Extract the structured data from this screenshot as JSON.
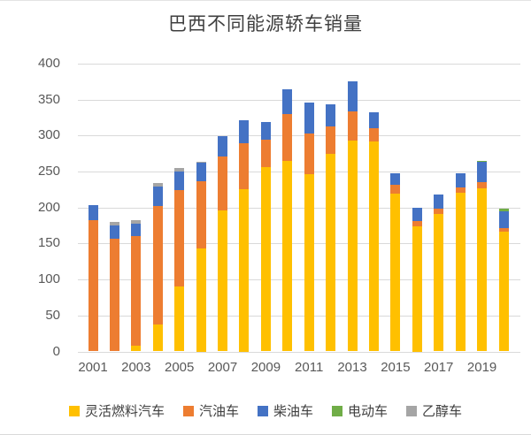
{
  "chart_data": {
    "type": "bar",
    "stacked": true,
    "title": "巴西不同能源轿车销量",
    "categories": [
      "2001",
      "2002",
      "2003",
      "2004",
      "2005",
      "2006",
      "2007",
      "2008",
      "2009",
      "2010",
      "2011",
      "2012",
      "2013",
      "2014",
      "2015",
      "2016",
      "2017",
      "2018",
      "2019",
      "2020"
    ],
    "x_tick_labels": [
      "2001",
      "2003",
      "2005",
      "2007",
      "2009",
      "2011",
      "2013",
      "2015",
      "2017",
      "2019"
    ],
    "y_ticks": [
      400,
      350,
      300,
      250,
      200,
      150,
      100,
      50,
      0
    ],
    "ylim": [
      0,
      400
    ],
    "grid": true,
    "legend_position": "bottom",
    "series": [
      {
        "key": "flex-fuel",
        "name": "灵活燃料汽车",
        "color": "#FFC000",
        "values": [
          0,
          0,
          8,
          37,
          90,
          143,
          196,
          225,
          256,
          265,
          246,
          275,
          293,
          292,
          219,
          174,
          191,
          220,
          227,
          166
        ]
      },
      {
        "key": "gasoline",
        "name": "汽油车",
        "color": "#ED7D31",
        "values": [
          183,
          157,
          152,
          165,
          134,
          93,
          75,
          64,
          38,
          65,
          57,
          38,
          41,
          18,
          12,
          7,
          7,
          8,
          8,
          5
        ]
      },
      {
        "key": "diesel",
        "name": "柴油车",
        "color": "#4472C4",
        "values": [
          20,
          18,
          17,
          27,
          26,
          26,
          28,
          33,
          25,
          35,
          43,
          31,
          41,
          23,
          17,
          19,
          20,
          20,
          28,
          24
        ]
      },
      {
        "key": "electric",
        "name": "电动车",
        "color": "#70AD47",
        "values": [
          0,
          0,
          0,
          0,
          0,
          0,
          0,
          0,
          0,
          0,
          0,
          0,
          0,
          0,
          0,
          0,
          0,
          0,
          2,
          3
        ]
      },
      {
        "key": "ethanol",
        "name": "乙醇车",
        "color": "#A5A5A5",
        "values": [
          0,
          5,
          6,
          5,
          5,
          2,
          0,
          0,
          0,
          0,
          0,
          0,
          0,
          0,
          0,
          0,
          0,
          0,
          0,
          0
        ]
      }
    ]
  },
  "style_colors": {
    "grid": "#d9d9d9",
    "axis_text": "#595959",
    "title_text": "#3f3f3f",
    "background": "#ffffff"
  }
}
